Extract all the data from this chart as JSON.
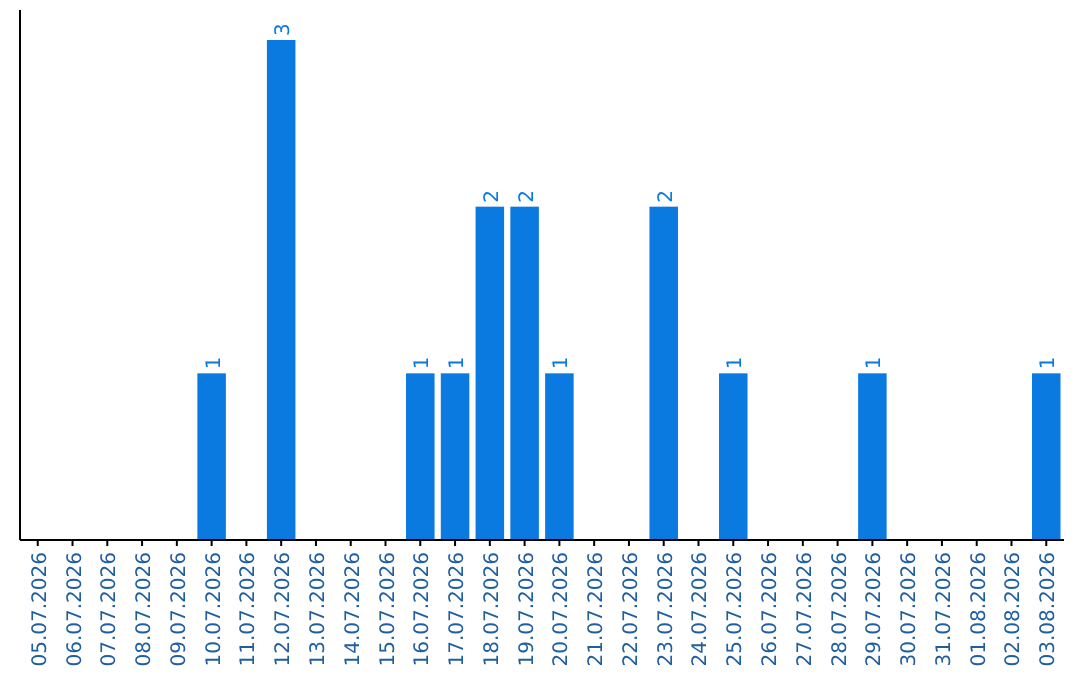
{
  "chart_data": {
    "type": "bar",
    "categories": [
      "05.07.2026",
      "06.07.2026",
      "07.07.2026",
      "08.07.2026",
      "09.07.2026",
      "10.07.2026",
      "11.07.2026",
      "12.07.2026",
      "13.07.2026",
      "14.07.2026",
      "15.07.2026",
      "16.07.2026",
      "17.07.2026",
      "18.07.2026",
      "19.07.2026",
      "20.07.2026",
      "21.07.2026",
      "22.07.2026",
      "23.07.2026",
      "24.07.2026",
      "25.07.2026",
      "26.07.2026",
      "27.07.2026",
      "28.07.2026",
      "29.07.2026",
      "30.07.2026",
      "31.07.2026",
      "01.08.2026",
      "02.08.2026",
      "03.08.2026"
    ],
    "values": [
      0,
      0,
      0,
      0,
      0,
      1,
      0,
      3,
      0,
      0,
      0,
      1,
      1,
      2,
      2,
      1,
      0,
      0,
      2,
      0,
      1,
      0,
      0,
      0,
      1,
      0,
      0,
      0,
      0,
      1
    ],
    "value_labels": [
      null,
      null,
      null,
      null,
      null,
      "1",
      null,
      "3",
      null,
      null,
      null,
      "1",
      "1",
      "2",
      "2",
      "1",
      null,
      null,
      "2",
      null,
      "1",
      null,
      null,
      null,
      "1",
      null,
      null,
      null,
      null,
      "1"
    ],
    "color": "#0a7ae0",
    "tick_labels": "x"
  }
}
